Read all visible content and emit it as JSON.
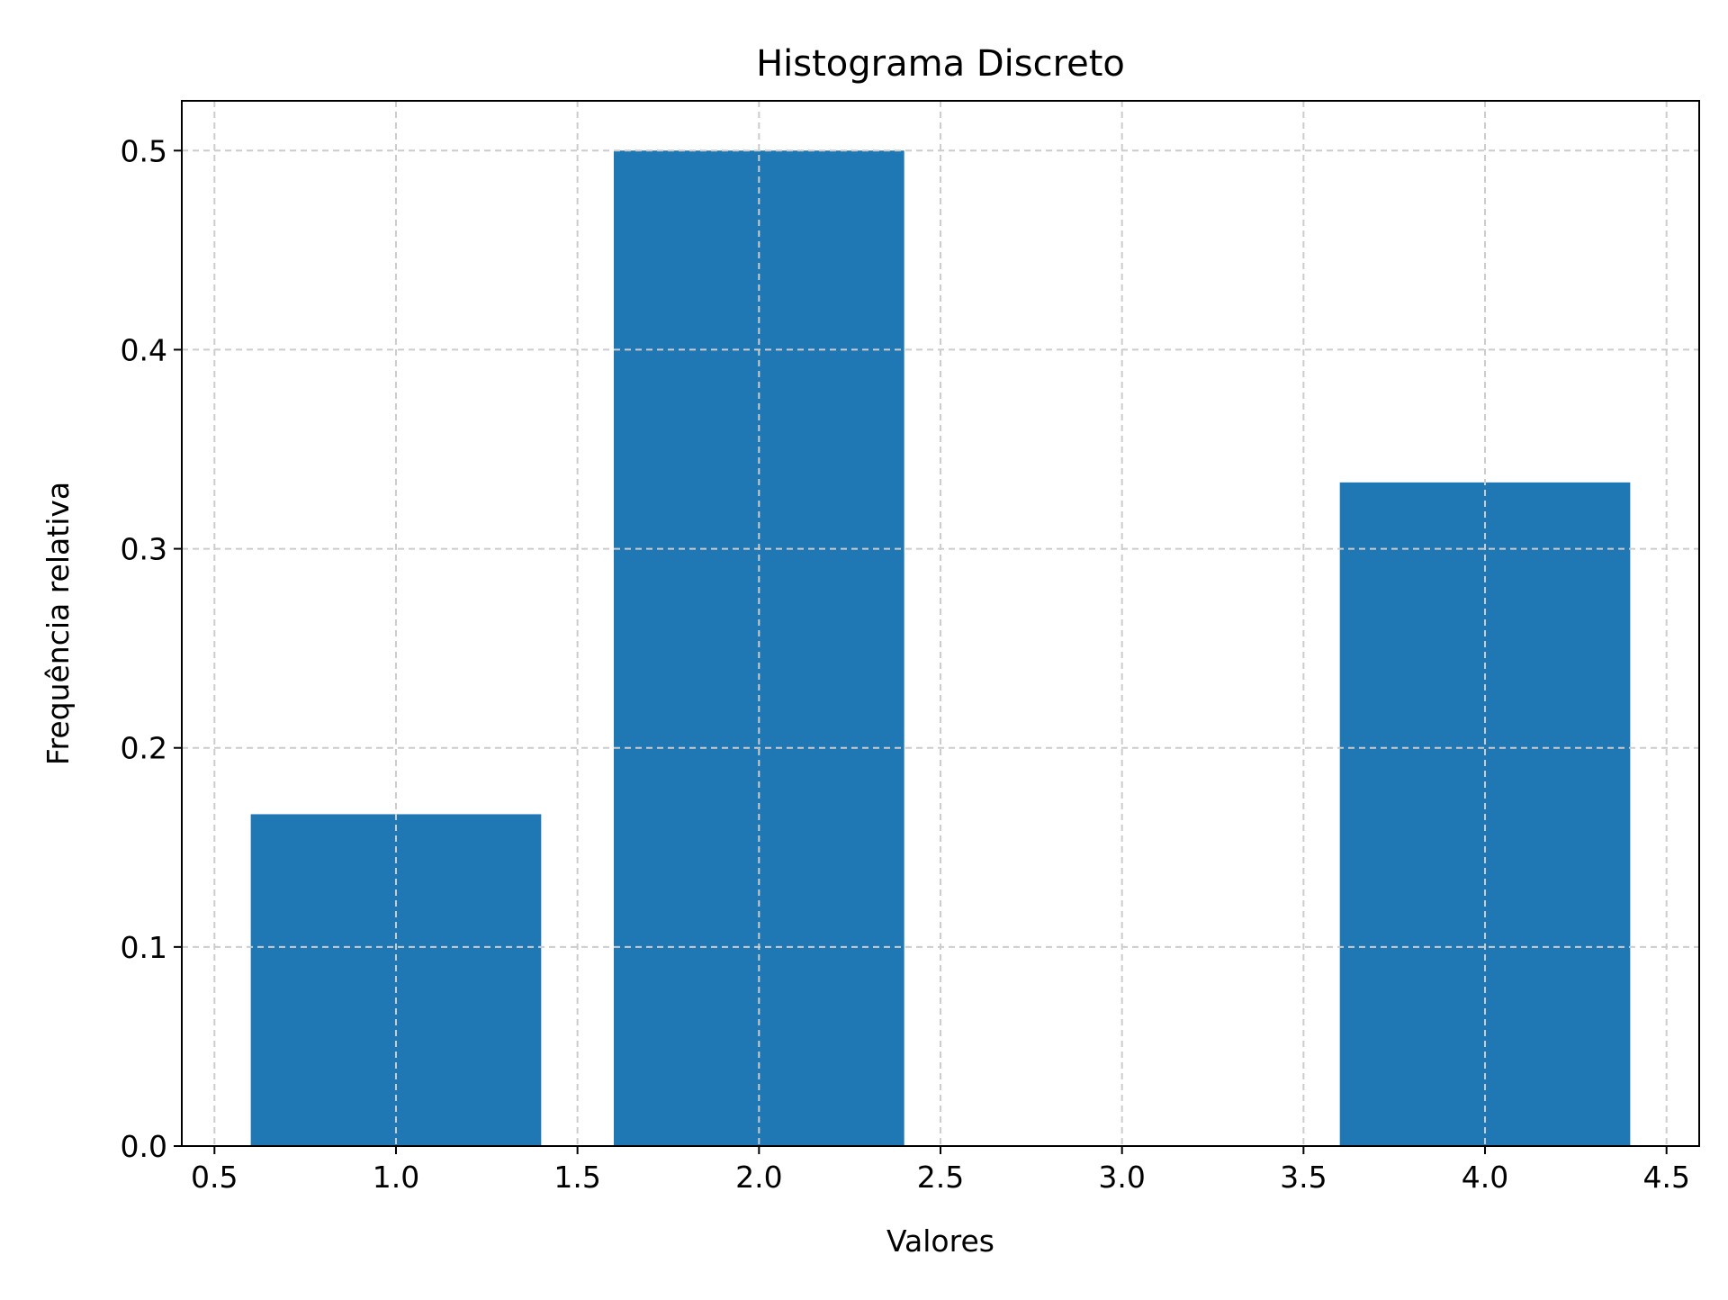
{
  "chart_data": {
    "type": "bar",
    "title": "Histograma Discreto",
    "xlabel": "Valores",
    "ylabel": "Frequência relativa",
    "bar_color": "#1f77b4",
    "bar_width": 0.8,
    "x": [
      1,
      2,
      3,
      4
    ],
    "values": [
      0.16666666666666666,
      0.5,
      0.0,
      0.3333333333333333
    ],
    "xlim": [
      0.41,
      4.59
    ],
    "ylim": [
      0,
      0.525
    ],
    "xticks": [
      "0.5",
      "1.0",
      "1.5",
      "2.0",
      "2.5",
      "3.0",
      "3.5",
      "4.0",
      "4.5"
    ],
    "yticks": [
      "0.0",
      "0.1",
      "0.2",
      "0.3",
      "0.4",
      "0.5"
    ],
    "grid": true,
    "grid_style": "dashed",
    "grid_color": "#cccccc",
    "legend": null
  }
}
